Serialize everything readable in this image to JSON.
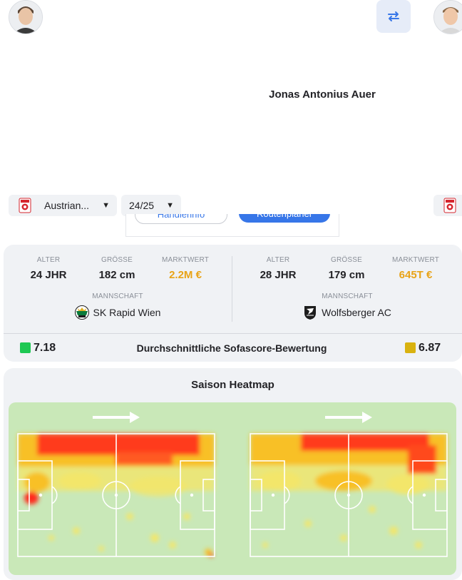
{
  "header": {
    "player_name": "Jonas Antonius Auer",
    "swap_icon": "swap-arrows-icon"
  },
  "selectors": {
    "league_value": "Austrian...",
    "season_value": "24/25"
  },
  "hidden_buttons": {
    "left_label": "Händlerinfo",
    "right_label": "Routenplaner"
  },
  "players": [
    {
      "age_label": "ALTER",
      "age_value": "24 JHR",
      "height_label": "GRÖSSE",
      "height_value": "182 cm",
      "market_label": "MARKTWERT",
      "market_value": "2.2M €",
      "team_label": "MANNSCHAFT",
      "team_name": "SK Rapid Wien",
      "rating": "7.18",
      "rating_color": "#1ec853"
    },
    {
      "age_label": "ALTER",
      "age_value": "28 JHR",
      "height_label": "GRÖSSE",
      "height_value": "179 cm",
      "market_label": "MARKTWERT",
      "market_value": "645T €",
      "team_label": "MANNSCHAFT",
      "team_name": "Wolfsberger AC",
      "rating": "6.87",
      "rating_color": "#d9b20f"
    }
  ],
  "rating_label": "Durchschnittliche Sofascore-Bewertung",
  "heatmap": {
    "title": "Saison Heatmap",
    "pitch_color": "#c9e8b8"
  },
  "colors": {
    "accent": "#3776e8",
    "market_value": "#e8a317",
    "card_bg": "#f0f2f5"
  }
}
